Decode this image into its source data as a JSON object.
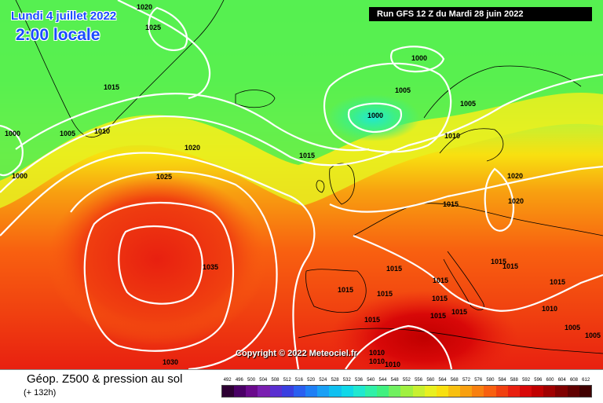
{
  "title": {
    "date": "Lundi 4 juillet 2022",
    "time": "2:00 locale"
  },
  "run_info": "Run GFS 12 Z du Mardi 28 juin 2022",
  "copyright": "Copyright © 2022 Meteociel.fr",
  "product": {
    "name": "Géop. Z500 & pression au sol",
    "lead_time": "(+ 132h)"
  },
  "legend": {
    "values": [
      "492",
      "496",
      "500",
      "504",
      "508",
      "512",
      "516",
      "520",
      "524",
      "528",
      "532",
      "536",
      "540",
      "544",
      "548",
      "552",
      "556",
      "560",
      "564",
      "568",
      "572",
      "576",
      "580",
      "584",
      "588",
      "592",
      "596",
      "600",
      "604",
      "608",
      "612"
    ],
    "colors": [
      "#2d0033",
      "#4a0066",
      "#6a0a8c",
      "#7a1fb0",
      "#5a2fd0",
      "#3a3fe0",
      "#2a5ff0",
      "#1f7ff5",
      "#1aa0f5",
      "#10c0f0",
      "#10d8e8",
      "#20e8d0",
      "#30f0a8",
      "#40f080",
      "#70f060",
      "#a0f040",
      "#c8f030",
      "#e8f020",
      "#f8e010",
      "#f8c010",
      "#f8a010",
      "#f88010",
      "#f86010",
      "#f04010",
      "#e82010",
      "#d80808",
      "#c00000",
      "#a00000",
      "#800000",
      "#600000",
      "#400000"
    ]
  },
  "isobars": [
    {
      "value": "1020",
      "label": "1020"
    },
    {
      "value": "1025",
      "label": "1025"
    },
    {
      "value": "1015",
      "label": "1015"
    },
    {
      "value": "1010",
      "label": "1010"
    },
    {
      "value": "1005",
      "label": "1005"
    },
    {
      "value": "1000",
      "label": "1000"
    },
    {
      "value": "1035",
      "label": "1035"
    },
    {
      "value": "1030",
      "label": "1030"
    }
  ],
  "pressure_labels": [
    "1020",
    "1025",
    "1015",
    "1005",
    "1010",
    "1000",
    "1000",
    "1020",
    "1025",
    "1035",
    "1030",
    "1000",
    "1005",
    "1000",
    "1005",
    "1010",
    "1015",
    "1020",
    "1020",
    "1015",
    "1015",
    "1015",
    "1015",
    "1015",
    "1015",
    "1015",
    "1015",
    "1015",
    "1015",
    "1010",
    "1010",
    "1010",
    "1015",
    "1010",
    "1005",
    "1005",
    "1015"
  ]
}
